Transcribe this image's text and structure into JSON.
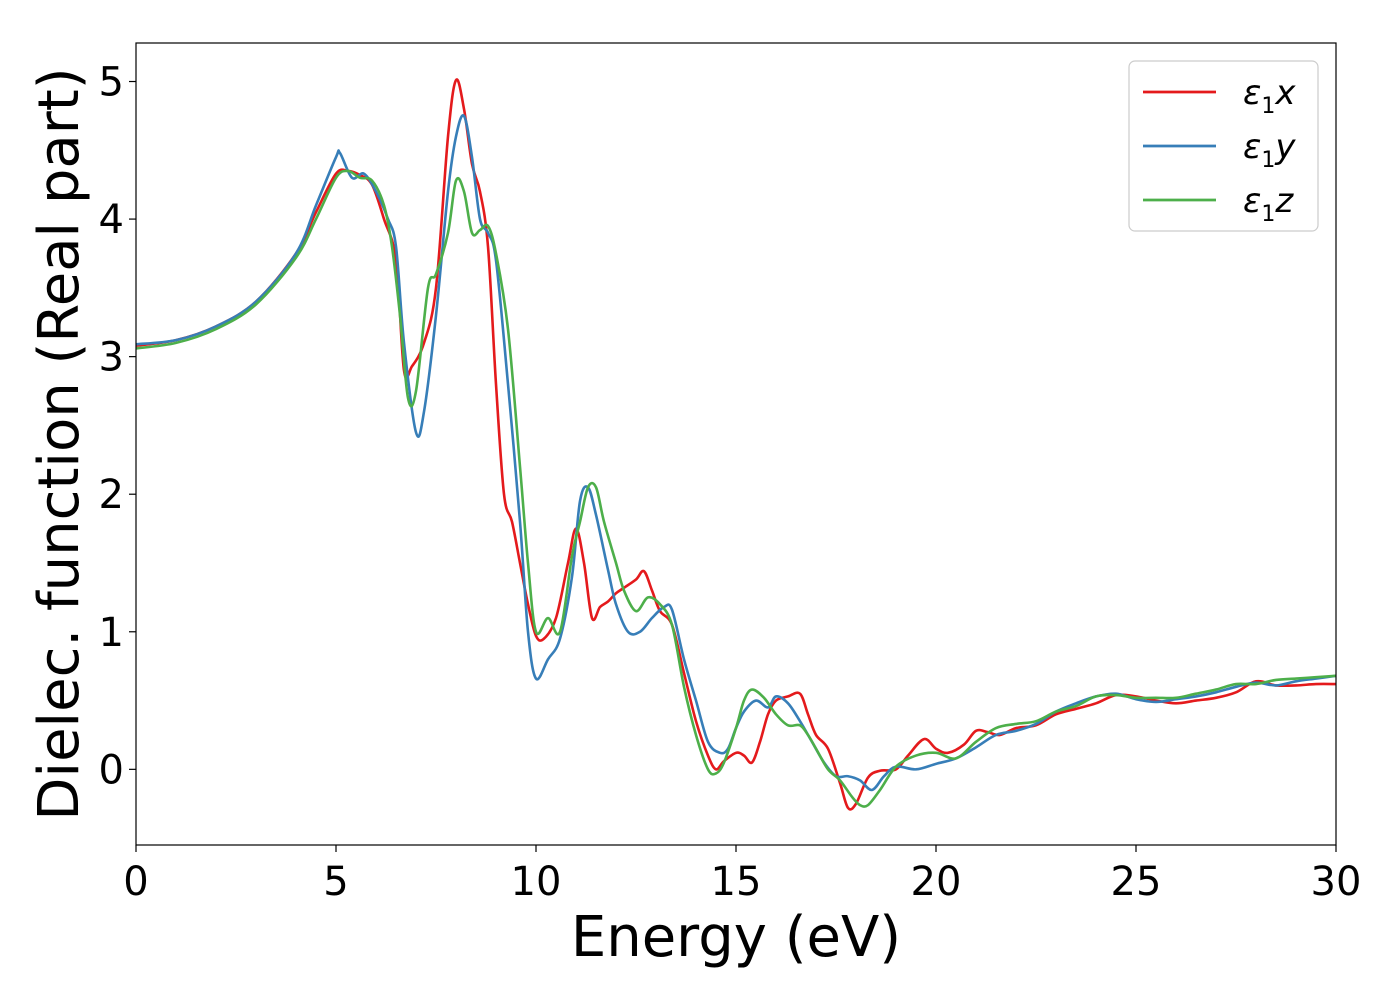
{
  "chart_data": {
    "type": "line",
    "title": "",
    "xlabel": "Energy (eV)",
    "ylabel": "Dielec. function (Real part)",
    "xlim": [
      0,
      30
    ],
    "ylim": [
      -0.55,
      5.28
    ],
    "xticks": [
      0,
      5,
      10,
      15,
      20,
      25,
      30
    ],
    "yticks": [
      0,
      1,
      2,
      3,
      4,
      5
    ],
    "grid": false,
    "legend_position": "upper right",
    "series": [
      {
        "name": "ε1x",
        "legend_base": "ε",
        "legend_sub": "1",
        "legend_var": "x",
        "color": "#e41a1c",
        "x": [
          0,
          1,
          2,
          3,
          4,
          4.5,
          5,
          5.3,
          5.6,
          5.9,
          6.2,
          6.5,
          6.7,
          6.9,
          7.2,
          7.5,
          7.8,
          8.0,
          8.2,
          8.4,
          8.6,
          8.8,
          9.0,
          9.2,
          9.4,
          9.6,
          9.8,
          10.0,
          10.2,
          10.5,
          10.8,
          11.0,
          11.2,
          11.4,
          11.6,
          11.8,
          12.0,
          12.2,
          12.5,
          12.7,
          12.9,
          13.1,
          13.4,
          13.7,
          14.0,
          14.3,
          14.5,
          14.7,
          15.0,
          15.2,
          15.4,
          15.6,
          15.8,
          16.0,
          16.3,
          16.6,
          16.8,
          17.0,
          17.3,
          17.6,
          17.8,
          18.0,
          18.3,
          18.6,
          19.0,
          19.3,
          19.7,
          20.0,
          20.3,
          20.7,
          21.0,
          21.3,
          21.6,
          22.0,
          22.5,
          23.0,
          23.5,
          24.0,
          24.5,
          25.0,
          25.5,
          26.0,
          26.5,
          27.0,
          27.5,
          28.0,
          28.5,
          29.0,
          29.5,
          30.0
        ],
        "y": [
          3.08,
          3.12,
          3.22,
          3.4,
          3.75,
          4.05,
          4.33,
          4.35,
          4.32,
          4.25,
          4.0,
          3.7,
          2.9,
          2.93,
          3.1,
          3.5,
          4.6,
          5.01,
          4.8,
          4.4,
          4.2,
          3.8,
          2.8,
          2.0,
          1.8,
          1.5,
          1.2,
          0.97,
          0.95,
          1.1,
          1.5,
          1.75,
          1.5,
          1.1,
          1.18,
          1.22,
          1.28,
          1.32,
          1.38,
          1.44,
          1.3,
          1.15,
          1.05,
          0.7,
          0.35,
          0.1,
          0.0,
          0.06,
          0.12,
          0.1,
          0.05,
          0.2,
          0.4,
          0.5,
          0.53,
          0.55,
          0.4,
          0.25,
          0.15,
          -0.1,
          -0.28,
          -0.25,
          -0.06,
          -0.01,
          0.0,
          0.1,
          0.22,
          0.15,
          0.12,
          0.18,
          0.28,
          0.27,
          0.25,
          0.3,
          0.32,
          0.4,
          0.44,
          0.48,
          0.54,
          0.53,
          0.5,
          0.48,
          0.5,
          0.52,
          0.56,
          0.64,
          0.61,
          0.61,
          0.62,
          0.62
        ]
      },
      {
        "name": "ε1y",
        "legend_base": "ε",
        "legend_sub": "1",
        "legend_var": "y",
        "color": "#377eb8",
        "x": [
          0,
          1,
          2,
          3,
          4,
          4.5,
          5,
          5.1,
          5.4,
          5.7,
          6.0,
          6.3,
          6.5,
          6.7,
          7.0,
          7.2,
          7.5,
          7.8,
          8.0,
          8.2,
          8.4,
          8.6,
          8.8,
          9.0,
          9.3,
          9.6,
          9.8,
          10.0,
          10.3,
          10.6,
          10.9,
          11.1,
          11.3,
          11.5,
          11.8,
          12.0,
          12.3,
          12.6,
          12.9,
          13.2,
          13.4,
          13.7,
          14.0,
          14.3,
          14.6,
          14.8,
          15.0,
          15.2,
          15.5,
          15.8,
          16.0,
          16.3,
          16.6,
          16.9,
          17.2,
          17.5,
          17.8,
          18.1,
          18.4,
          18.7,
          19.0,
          19.5,
          20.0,
          20.5,
          21.0,
          21.5,
          22.0,
          22.5,
          23.0,
          23.5,
          24.0,
          24.5,
          25.0,
          25.5,
          26.0,
          26.5,
          27.0,
          27.5,
          28.0,
          28.5,
          29.0,
          29.5,
          30.0
        ],
        "y": [
          3.09,
          3.12,
          3.22,
          3.4,
          3.75,
          4.1,
          4.45,
          4.48,
          4.3,
          4.33,
          4.2,
          4.0,
          3.8,
          3.1,
          2.45,
          2.6,
          3.3,
          4.2,
          4.6,
          4.75,
          4.45,
          4.0,
          3.9,
          3.7,
          2.8,
          1.8,
          1.0,
          0.66,
          0.8,
          0.95,
          1.4,
          1.95,
          2.05,
          1.85,
          1.45,
          1.2,
          1.0,
          1.0,
          1.1,
          1.18,
          1.16,
          0.8,
          0.5,
          0.2,
          0.12,
          0.15,
          0.3,
          0.42,
          0.5,
          0.45,
          0.53,
          0.48,
          0.35,
          0.2,
          0.05,
          -0.05,
          -0.05,
          -0.08,
          -0.15,
          -0.05,
          0.02,
          0.0,
          0.04,
          0.08,
          0.16,
          0.25,
          0.28,
          0.33,
          0.42,
          0.48,
          0.53,
          0.55,
          0.51,
          0.49,
          0.51,
          0.53,
          0.56,
          0.6,
          0.63,
          0.61,
          0.64,
          0.66,
          0.68
        ]
      },
      {
        "name": "ε1z",
        "legend_base": "ε",
        "legend_sub": "1",
        "legend_var": "z",
        "color": "#4daf4a",
        "x": [
          0,
          1,
          2,
          3,
          4,
          4.5,
          5,
          5.3,
          5.6,
          5.9,
          6.2,
          6.4,
          6.6,
          6.8,
          7.0,
          7.3,
          7.5,
          7.8,
          8.0,
          8.2,
          8.4,
          8.6,
          8.8,
          9.0,
          9.3,
          9.6,
          9.8,
          10.0,
          10.3,
          10.6,
          10.9,
          11.1,
          11.3,
          11.5,
          11.7,
          12.0,
          12.2,
          12.5,
          12.8,
          13.1,
          13.4,
          13.7,
          14.0,
          14.3,
          14.5,
          14.7,
          15.0,
          15.2,
          15.4,
          15.7,
          16.0,
          16.3,
          16.6,
          16.8,
          17.0,
          17.3,
          17.6,
          17.9,
          18.1,
          18.3,
          18.6,
          19.0,
          19.5,
          20.0,
          20.5,
          21.0,
          21.5,
          22.0,
          22.5,
          23.0,
          23.5,
          24.0,
          24.5,
          25.0,
          25.5,
          26.0,
          26.5,
          27.0,
          27.5,
          28.0,
          28.5,
          29.0,
          29.5,
          30.0
        ],
        "y": [
          3.06,
          3.1,
          3.2,
          3.38,
          3.72,
          4.0,
          4.3,
          4.35,
          4.3,
          4.28,
          4.1,
          3.8,
          3.3,
          2.7,
          2.75,
          3.5,
          3.6,
          3.9,
          4.28,
          4.2,
          3.9,
          3.92,
          3.95,
          3.75,
          3.2,
          2.2,
          1.5,
          1.0,
          1.1,
          1.0,
          1.55,
          1.8,
          2.05,
          2.05,
          1.8,
          1.5,
          1.3,
          1.15,
          1.25,
          1.2,
          1.05,
          0.6,
          0.25,
          0.0,
          -0.03,
          0.05,
          0.3,
          0.5,
          0.58,
          0.52,
          0.4,
          0.32,
          0.32,
          0.25,
          0.15,
          0.0,
          -0.08,
          -0.2,
          -0.26,
          -0.26,
          -0.15,
          0.02,
          0.1,
          0.12,
          0.08,
          0.2,
          0.3,
          0.33,
          0.35,
          0.42,
          0.46,
          0.53,
          0.54,
          0.52,
          0.52,
          0.52,
          0.55,
          0.58,
          0.62,
          0.62,
          0.65,
          0.66,
          0.67,
          0.68
        ]
      }
    ]
  }
}
